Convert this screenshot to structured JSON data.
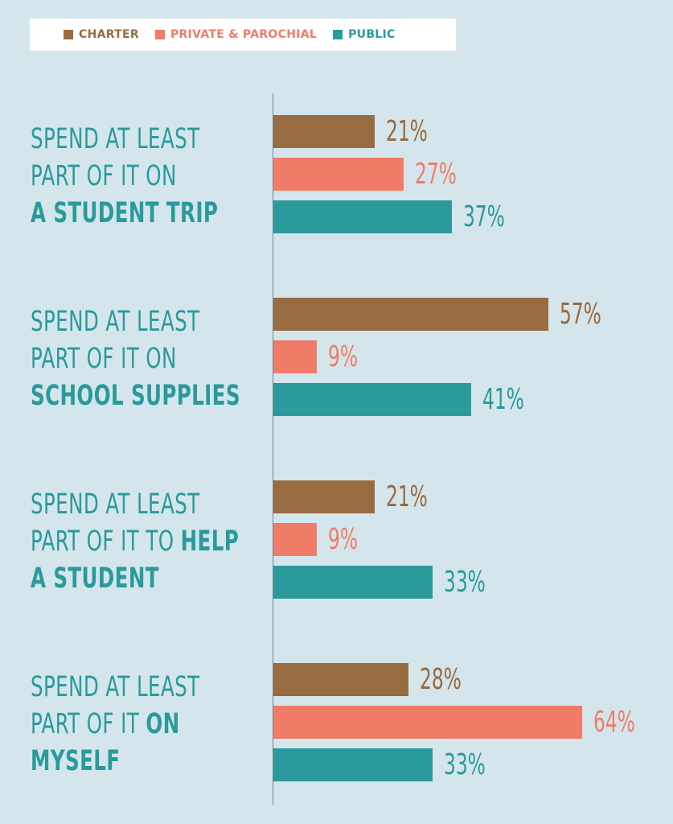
{
  "legend": {
    "items": [
      {
        "label": "CHARTER",
        "color": "#986b41"
      },
      {
        "label": "PRIVATE & PAROCHIAL",
        "color": "#f07c68"
      },
      {
        "label": "PUBLIC",
        "color": "#2a9a9c"
      }
    ]
  },
  "groups": [
    {
      "line1": "SPEND AT LEAST",
      "line2_pre": "PART OF IT ON",
      "line2_bold": "",
      "line3": "A STUDENT TRIP"
    },
    {
      "line1": "SPEND AT LEAST",
      "line2_pre": "PART OF IT ON",
      "line2_bold": "",
      "line3": "SCHOOL SUPPLIES"
    },
    {
      "line1": "SPEND AT LEAST",
      "line2_pre": "PART OF IT TO ",
      "line2_bold": "HELP",
      "line3": "A STUDENT"
    },
    {
      "line1": "SPEND AT LEAST",
      "line2_pre": "PART OF IT ",
      "line2_bold": "ON",
      "line3": "MYSELF"
    }
  ],
  "chart_data": {
    "type": "bar",
    "orientation": "horizontal",
    "categories": [
      "SPEND AT LEAST PART OF IT ON A STUDENT TRIP",
      "SPEND AT LEAST PART OF IT ON SCHOOL SUPPLIES",
      "SPEND AT LEAST PART OF IT TO HELP A STUDENT",
      "SPEND AT LEAST PART OF IT ON MYSELF"
    ],
    "series": [
      {
        "name": "CHARTER",
        "color": "#986b41",
        "values": [
          21,
          57,
          21,
          28
        ],
        "labels": [
          "21%",
          "57%",
          "21%",
          "28%"
        ]
      },
      {
        "name": "PRIVATE & PAROCHIAL",
        "color": "#f07c68",
        "values": [
          27,
          9,
          9,
          64
        ],
        "labels": [
          "27%",
          "9%",
          "9%",
          "64%"
        ]
      },
      {
        "name": "PUBLIC",
        "color": "#2a9a9c",
        "values": [
          37,
          41,
          33,
          33
        ],
        "labels": [
          "37%",
          "41%",
          "33%",
          "33%"
        ]
      }
    ],
    "value_unit": "%",
    "xlim": [
      0,
      70
    ],
    "grid": false,
    "legend_position": "top"
  }
}
